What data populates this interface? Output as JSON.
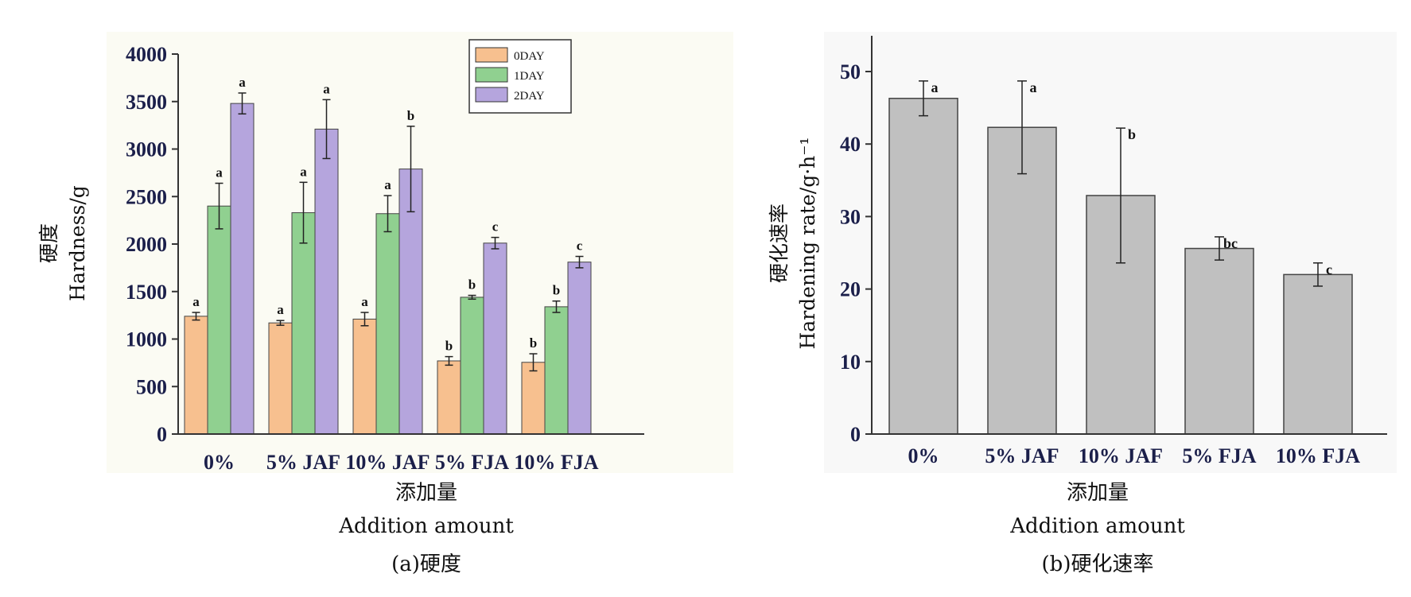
{
  "chart_data": [
    {
      "type": "bar",
      "categories": [
        "0%",
        "5% JAF",
        "10% JAF",
        "5% FJA",
        "10% FJA"
      ],
      "series": [
        {
          "name": "0DAY",
          "color": "#f7c08f",
          "values": [
            1240,
            1170,
            1210,
            770,
            755
          ],
          "errors": [
            40,
            25,
            70,
            45,
            90
          ],
          "letters": [
            "a",
            "a",
            "a",
            "b",
            "b"
          ]
        },
        {
          "name": "1DAY",
          "color": "#90d090",
          "values": [
            2400,
            2330,
            2320,
            1440,
            1340
          ],
          "errors": [
            240,
            320,
            190,
            20,
            60
          ],
          "letters": [
            "a",
            "a",
            "a",
            "b",
            "b"
          ]
        },
        {
          "name": "2DAY",
          "color": "#b5a5dd",
          "values": [
            3480,
            3210,
            2790,
            2010,
            1810
          ],
          "errors": [
            110,
            310,
            450,
            60,
            60
          ],
          "letters": [
            "a",
            "a",
            "b",
            "c",
            "c"
          ]
        }
      ],
      "ylim": [
        0,
        4000
      ],
      "yticks": [
        0,
        500,
        1000,
        1500,
        2000,
        2500,
        3000,
        3500,
        4000
      ],
      "ylabel_cn": "硬度",
      "ylabel_en": "Hardness/g",
      "xlabel_cn": "添加量",
      "xlabel_en": "Addition amount",
      "caption": "(a)硬度",
      "legend_position": "top-center"
    },
    {
      "type": "bar",
      "categories": [
        "0%",
        "5% JAF",
        "10% JAF",
        "5% FJA",
        "10% FJA"
      ],
      "series": [
        {
          "color": "#c0c0c0",
          "values": [
            46.3,
            42.3,
            32.9,
            25.6,
            22.0
          ],
          "errors": [
            2.4,
            6.4,
            9.3,
            1.6,
            1.6
          ],
          "letters": [
            "a",
            "a",
            "b",
            "bc",
            "c"
          ]
        }
      ],
      "ylim": [
        0,
        55
      ],
      "yticks": [
        0,
        10,
        20,
        30,
        40,
        50
      ],
      "ylabel_cn": "硬化速率",
      "ylabel_en": "Hardening rate/g·h⁻¹",
      "xlabel_cn": "添加量",
      "xlabel_en": "Addition amount",
      "caption": "(b)硬化速率"
    }
  ]
}
